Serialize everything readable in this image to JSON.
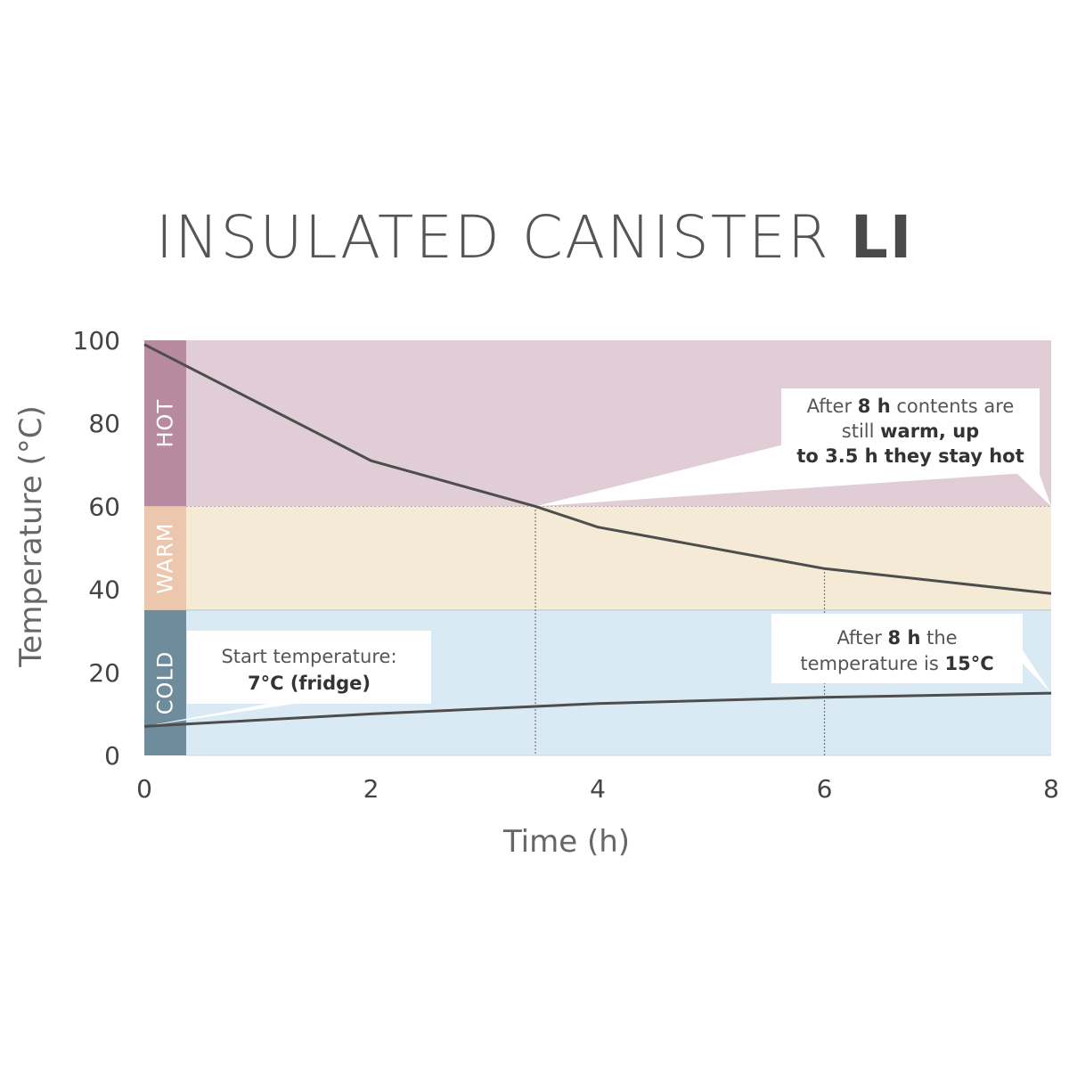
{
  "chart_data": {
    "type": "line",
    "title": "INSULATED CANISTER",
    "title_bold": "LI",
    "xlabel": "Time (h)",
    "ylabel": "Temperature (°C)",
    "xlim": [
      0,
      8
    ],
    "ylim": [
      0,
      100
    ],
    "x_ticks": [
      "0",
      "2",
      "4",
      "6",
      "8"
    ],
    "y_ticks": [
      "0",
      "20",
      "40",
      "60",
      "80",
      "100"
    ],
    "zones": [
      {
        "label": "HOT",
        "from": 60,
        "to": 100,
        "color": "#e0cdd6",
        "tab_color": "#b88a9f"
      },
      {
        "label": "WARM",
        "from": 35,
        "to": 60,
        "color": "#f4ead6",
        "tab_color": "#ecc7ad"
      },
      {
        "label": "COLD",
        "from": 0,
        "to": 35,
        "color": "#d9eaf4",
        "tab_color": "#6f8c9c"
      }
    ],
    "series": [
      {
        "x": [
          0,
          2,
          3.45,
          4,
          6,
          8
        ],
        "y": [
          99,
          71,
          60,
          55,
          45,
          39
        ],
        "color": "#4d4d4d"
      },
      {
        "x": [
          0,
          2,
          3.45,
          4,
          6,
          8
        ],
        "y": [
          7,
          10,
          11.8,
          12.5,
          14,
          15
        ],
        "color": "#4d4d4d"
      }
    ],
    "reference_lines": [
      3.45,
      6
    ],
    "annotations": [
      {
        "lines": [
          [
            "Start temperature:"
          ],
          [
            "7°C (fridge)"
          ]
        ]
      },
      {
        "lines": [
          [
            "After ",
            "8 h",
            " contents are"
          ],
          [
            "still ",
            "warm, up"
          ],
          [
            "to 3.5 h they stay hot"
          ]
        ]
      },
      {
        "lines": [
          [
            "After ",
            "8 h",
            " the"
          ],
          [
            "temperature is ",
            "15°C"
          ]
        ]
      }
    ]
  }
}
